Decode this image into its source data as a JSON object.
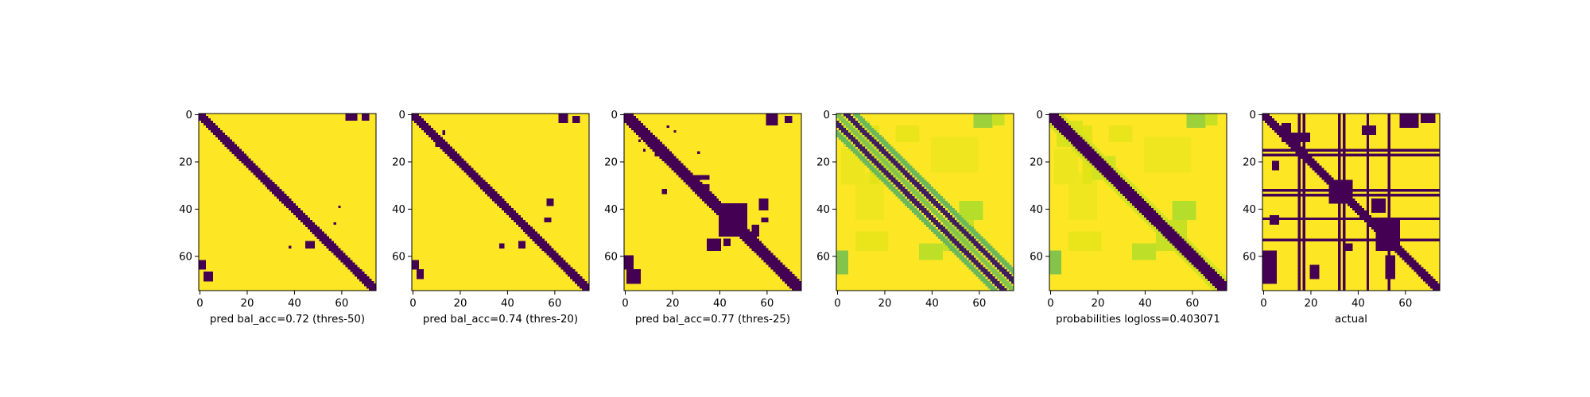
{
  "colors": {
    "background": "#fde725",
    "mark": "#440154",
    "mid_high": "#21918c",
    "mid_low": "#b5de2b",
    "mid_light": "#e3e418"
  },
  "chart_data": [
    {
      "type": "heatmap",
      "xlabel": "pred bal_acc=0.72 (thres-50)",
      "xticks": [
        "0",
        "20",
        "40",
        "60"
      ],
      "yticks": [
        "0",
        "20",
        "40",
        "60"
      ],
      "xlim": [
        0,
        75
      ],
      "ylim": [
        0,
        75
      ],
      "grid": false,
      "bands": [
        {
          "offset": 0,
          "width": 2,
          "value": 1
        }
      ],
      "blocks": [
        {
          "r0": 0,
          "r1": 3,
          "c0": 62,
          "c1": 67,
          "value": 1
        },
        {
          "r0": 0,
          "r1": 3,
          "c0": 69,
          "c1": 72,
          "value": 1
        },
        {
          "r0": 62,
          "r1": 66,
          "c0": 0,
          "c1": 3,
          "value": 1
        },
        {
          "r0": 67,
          "r1": 71,
          "c0": 2,
          "c1": 6,
          "value": 1
        },
        {
          "r0": 39,
          "r1": 40,
          "c0": 59,
          "c1": 60,
          "value": 1
        },
        {
          "r0": 46,
          "r1": 47,
          "c0": 57,
          "c1": 58,
          "value": 1
        },
        {
          "r0": 56,
          "r1": 57,
          "c0": 38,
          "c1": 39,
          "value": 1
        },
        {
          "r0": 54,
          "r1": 57,
          "c0": 45,
          "c1": 49,
          "value": 1
        }
      ]
    },
    {
      "type": "heatmap",
      "xlabel": "pred bal_acc=0.74 (thres-20)",
      "xticks": [
        "0",
        "20",
        "40",
        "60"
      ],
      "yticks": [
        "0",
        "20",
        "40",
        "60"
      ],
      "xlim": [
        0,
        75
      ],
      "ylim": [
        0,
        75
      ],
      "grid": false,
      "bands": [
        {
          "offset": 0,
          "width": 2,
          "value": 1
        }
      ],
      "blocks": [
        {
          "r0": 0,
          "r1": 4,
          "c0": 62,
          "c1": 66,
          "value": 1
        },
        {
          "r0": 1,
          "r1": 4,
          "c0": 68,
          "c1": 71,
          "value": 1
        },
        {
          "r0": 62,
          "r1": 66,
          "c0": 0,
          "c1": 3,
          "value": 1
        },
        {
          "r0": 66,
          "r1": 70,
          "c0": 2,
          "c1": 5,
          "value": 1
        },
        {
          "r0": 36,
          "r1": 39,
          "c0": 57,
          "c1": 60,
          "value": 1
        },
        {
          "r0": 44,
          "r1": 46,
          "c0": 56,
          "c1": 59,
          "value": 1
        },
        {
          "r0": 55,
          "r1": 57,
          "c0": 37,
          "c1": 39,
          "value": 1
        },
        {
          "r0": 54,
          "r1": 57,
          "c0": 45,
          "c1": 48,
          "value": 1
        },
        {
          "r0": 7,
          "r1": 9,
          "c0": 13,
          "c1": 14,
          "value": 1
        },
        {
          "r0": 12,
          "r1": 14,
          "c0": 10,
          "c1": 11,
          "value": 1
        }
      ]
    },
    {
      "type": "heatmap",
      "xlabel": "pred bal_acc=0.77 (thres-25)",
      "xticks": [
        "0",
        "20",
        "40",
        "60"
      ],
      "yticks": [
        "0",
        "20",
        "40",
        "60"
      ],
      "xlim": [
        0,
        75
      ],
      "ylim": [
        0,
        75
      ],
      "grid": false,
      "bands": [
        {
          "offset": 0,
          "width": 3,
          "value": 1
        }
      ],
      "blocks": [
        {
          "r0": 0,
          "r1": 5,
          "c0": 60,
          "c1": 65,
          "value": 1
        },
        {
          "r0": 1,
          "r1": 4,
          "c0": 68,
          "c1": 71,
          "value": 1
        },
        {
          "r0": 60,
          "r1": 66,
          "c0": 0,
          "c1": 4,
          "value": 1
        },
        {
          "r0": 66,
          "r1": 72,
          "c0": 1,
          "c1": 7,
          "value": 1
        },
        {
          "r0": 5,
          "r1": 6,
          "c0": 18,
          "c1": 19,
          "value": 1
        },
        {
          "r0": 7,
          "r1": 8,
          "c0": 21,
          "c1": 22,
          "value": 1
        },
        {
          "r0": 11,
          "r1": 12,
          "c0": 6,
          "c1": 7,
          "value": 1
        },
        {
          "r0": 15,
          "r1": 16,
          "c0": 8,
          "c1": 9,
          "value": 1
        },
        {
          "r0": 16,
          "r1": 17,
          "c0": 31,
          "c1": 32,
          "value": 1
        },
        {
          "r0": 17,
          "r1": 18,
          "c0": 13,
          "c1": 14,
          "value": 1
        },
        {
          "r0": 19,
          "r1": 20,
          "c0": 18,
          "c1": 20,
          "value": 1
        },
        {
          "r0": 26,
          "r1": 28,
          "c0": 28,
          "c1": 36,
          "value": 1
        },
        {
          "r0": 30,
          "r1": 33,
          "c0": 33,
          "c1": 36,
          "value": 1
        },
        {
          "r0": 32,
          "r1": 34,
          "c0": 16,
          "c1": 18,
          "value": 1
        },
        {
          "r0": 38,
          "r1": 52,
          "c0": 40,
          "c1": 52,
          "value": 1
        },
        {
          "r0": 36,
          "r1": 41,
          "c0": 57,
          "c1": 61,
          "value": 1
        },
        {
          "r0": 44,
          "r1": 46,
          "c0": 58,
          "c1": 61,
          "value": 1
        },
        {
          "r0": 47,
          "r1": 52,
          "c0": 54,
          "c1": 57,
          "value": 1
        },
        {
          "r0": 53,
          "r1": 58,
          "c0": 35,
          "c1": 41,
          "value": 1
        },
        {
          "r0": 53,
          "r1": 56,
          "c0": 42,
          "c1": 45,
          "value": 1
        }
      ]
    },
    {
      "type": "heatmap",
      "xlabel": "",
      "xticks": [
        "0",
        "20",
        "40",
        "60"
      ],
      "yticks": [
        "0",
        "20",
        "40",
        "60"
      ],
      "xlim": [
        0,
        75
      ],
      "ylim": [
        0,
        75
      ],
      "grid": false,
      "bands": [
        {
          "offset": 0,
          "width": 1,
          "value": 0.55
        },
        {
          "offset": 4,
          "width": 1,
          "value": 0.95
        },
        {
          "offset": -4,
          "width": 1,
          "value": 0.95
        },
        {
          "offset": 8,
          "width": 1,
          "value": 0.6
        },
        {
          "offset": -8,
          "width": 1,
          "value": 0.6
        }
      ],
      "blocks": [
        {
          "r0": 3,
          "r1": 14,
          "c0": 3,
          "c1": 14,
          "value": 0.25
        },
        {
          "r0": 18,
          "r1": 28,
          "c0": 18,
          "c1": 28,
          "value": 0.3
        },
        {
          "r0": 45,
          "r1": 58,
          "c0": 45,
          "c1": 58,
          "value": 0.35
        },
        {
          "r0": 0,
          "r1": 6,
          "c0": 58,
          "c1": 66,
          "value": 0.5
        },
        {
          "r0": 0,
          "r1": 5,
          "c0": 66,
          "c1": 71,
          "value": 0.35
        },
        {
          "r0": 58,
          "r1": 68,
          "c0": 0,
          "c1": 5,
          "value": 0.55
        },
        {
          "r0": 5,
          "r1": 12,
          "c0": 25,
          "c1": 35,
          "value": 0.15
        },
        {
          "r0": 15,
          "r1": 30,
          "c0": 2,
          "c1": 12,
          "value": 0.12
        },
        {
          "r0": 25,
          "r1": 45,
          "c0": 8,
          "c1": 20,
          "value": 0.1
        },
        {
          "r0": 37,
          "r1": 45,
          "c0": 52,
          "c1": 62,
          "value": 0.45
        },
        {
          "r0": 55,
          "r1": 62,
          "c0": 35,
          "c1": 45,
          "value": 0.4
        },
        {
          "r0": 50,
          "r1": 58,
          "c0": 8,
          "c1": 22,
          "value": 0.15
        },
        {
          "r0": 10,
          "r1": 25,
          "c0": 40,
          "c1": 60,
          "value": 0.1
        },
        {
          "r0": 5,
          "r1": 30,
          "c0": 14,
          "c1": 18,
          "value": 0.2
        }
      ]
    },
    {
      "type": "heatmap",
      "xlabel": "probabilities logloss=0.403071",
      "xticks": [
        "0",
        "20",
        "40",
        "60"
      ],
      "yticks": [
        "0",
        "20",
        "40",
        "60"
      ],
      "xlim": [
        0,
        75
      ],
      "ylim": [
        0,
        75
      ],
      "grid": false,
      "bands": [
        {
          "offset": 0,
          "width": 3,
          "value": 1
        },
        {
          "offset": 4,
          "width": 1,
          "value": 0.3
        },
        {
          "offset": -4,
          "width": 1,
          "value": 0.3
        }
      ],
      "blocks": [
        {
          "r0": 3,
          "r1": 14,
          "c0": 3,
          "c1": 14,
          "value": 0.25
        },
        {
          "r0": 18,
          "r1": 28,
          "c0": 18,
          "c1": 28,
          "value": 0.3
        },
        {
          "r0": 45,
          "r1": 58,
          "c0": 45,
          "c1": 58,
          "value": 0.35
        },
        {
          "r0": 0,
          "r1": 6,
          "c0": 58,
          "c1": 66,
          "value": 0.5
        },
        {
          "r0": 0,
          "r1": 5,
          "c0": 66,
          "c1": 71,
          "value": 0.35
        },
        {
          "r0": 58,
          "r1": 68,
          "c0": 0,
          "c1": 5,
          "value": 0.55
        },
        {
          "r0": 5,
          "r1": 12,
          "c0": 25,
          "c1": 35,
          "value": 0.15
        },
        {
          "r0": 15,
          "r1": 30,
          "c0": 2,
          "c1": 12,
          "value": 0.12
        },
        {
          "r0": 25,
          "r1": 45,
          "c0": 8,
          "c1": 20,
          "value": 0.1
        },
        {
          "r0": 37,
          "r1": 45,
          "c0": 52,
          "c1": 62,
          "value": 0.45
        },
        {
          "r0": 55,
          "r1": 62,
          "c0": 35,
          "c1": 45,
          "value": 0.4
        },
        {
          "r0": 50,
          "r1": 58,
          "c0": 8,
          "c1": 22,
          "value": 0.15
        },
        {
          "r0": 10,
          "r1": 25,
          "c0": 40,
          "c1": 60,
          "value": 0.1
        },
        {
          "r0": 5,
          "r1": 30,
          "c0": 14,
          "c1": 18,
          "value": 0.2
        }
      ]
    },
    {
      "type": "heatmap",
      "xlabel": "actual",
      "xticks": [
        "0",
        "20",
        "40",
        "60"
      ],
      "yticks": [
        "0",
        "20",
        "40",
        "60"
      ],
      "xlim": [
        0,
        75
      ],
      "ylim": [
        0,
        75
      ],
      "grid": false,
      "bands": [
        {
          "offset": 0,
          "width": 2,
          "value": 1
        }
      ],
      "row_lines": [
        15,
        17,
        32,
        34,
        44,
        53
      ],
      "col_lines": [
        15,
        17,
        32,
        34,
        44,
        53
      ],
      "blocks": [
        {
          "r0": 4,
          "r1": 12,
          "c0": 8,
          "c1": 12,
          "value": 1
        },
        {
          "r0": 8,
          "r1": 12,
          "c0": 12,
          "c1": 20,
          "value": 1
        },
        {
          "r0": 5,
          "r1": 9,
          "c0": 42,
          "c1": 48,
          "value": 1
        },
        {
          "r0": 0,
          "r1": 6,
          "c0": 58,
          "c1": 66,
          "value": 1
        },
        {
          "r0": 0,
          "r1": 4,
          "c0": 67,
          "c1": 73,
          "value": 1
        },
        {
          "r0": 28,
          "r1": 38,
          "c0": 28,
          "c1": 38,
          "value": 1
        },
        {
          "r0": 45,
          "r1": 58,
          "c0": 48,
          "c1": 58,
          "value": 1
        },
        {
          "r0": 36,
          "r1": 42,
          "c0": 46,
          "c1": 52,
          "value": 1
        },
        {
          "r0": 58,
          "r1": 72,
          "c0": 0,
          "c1": 6,
          "value": 1
        },
        {
          "r0": 20,
          "r1": 24,
          "c0": 4,
          "c1": 7,
          "value": 1
        },
        {
          "r0": 43,
          "r1": 47,
          "c0": 3,
          "c1": 7,
          "value": 1
        },
        {
          "r0": 60,
          "r1": 70,
          "c0": 52,
          "c1": 56,
          "value": 1
        },
        {
          "r0": 64,
          "r1": 70,
          "c0": 20,
          "c1": 24,
          "value": 1
        },
        {
          "r0": 55,
          "r1": 58,
          "c0": 34,
          "c1": 38,
          "value": 1
        }
      ]
    }
  ]
}
